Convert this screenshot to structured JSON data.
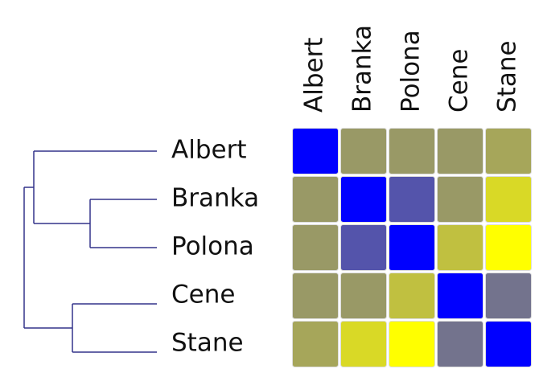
{
  "chart_data": {
    "type": "heatmap",
    "categories": [
      "Albert",
      "Branka",
      "Polona",
      "Cene",
      "Stane"
    ],
    "values": [
      [
        0,
        0.6,
        0.6,
        0.6,
        0.65
      ],
      [
        0.6,
        0,
        0.33,
        0.6,
        0.85
      ],
      [
        0.6,
        0.33,
        0,
        0.75,
        1
      ],
      [
        0.6,
        0.6,
        0.75,
        0,
        0.45
      ],
      [
        0.65,
        0.85,
        1,
        0.45,
        0
      ]
    ],
    "colormap": [
      "#0000ff",
      "#ffff00"
    ],
    "zlim": [
      0,
      1
    ]
  }
}
